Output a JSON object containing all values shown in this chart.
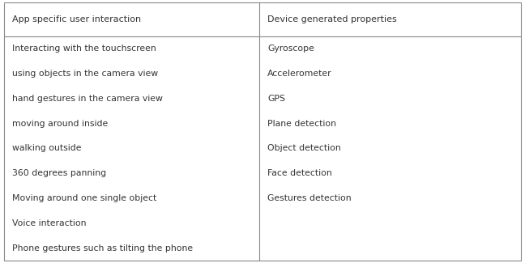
{
  "col1_header": "App specific user interaction",
  "col2_header": "Device generated properties",
  "col1_items": [
    "Interacting with the touchscreen",
    "using objects in the camera view",
    "hand gestures in the camera view",
    "moving around inside",
    "walking outside",
    "360 degrees panning",
    "Moving around one single object",
    "Voice interaction",
    "Phone gestures such as tilting the phone"
  ],
  "col2_items": [
    "Gyroscope",
    "Accelerometer",
    "GPS",
    "Plane detection",
    "Object detection",
    "Face detection",
    "Gestures detection",
    "",
    ""
  ],
  "background_color": "#ffffff",
  "text_color": "#333333",
  "border_color": "#888888",
  "header_font_size": 8.0,
  "body_font_size": 7.8,
  "figsize": [
    6.48,
    3.25
  ],
  "dpi": 100
}
